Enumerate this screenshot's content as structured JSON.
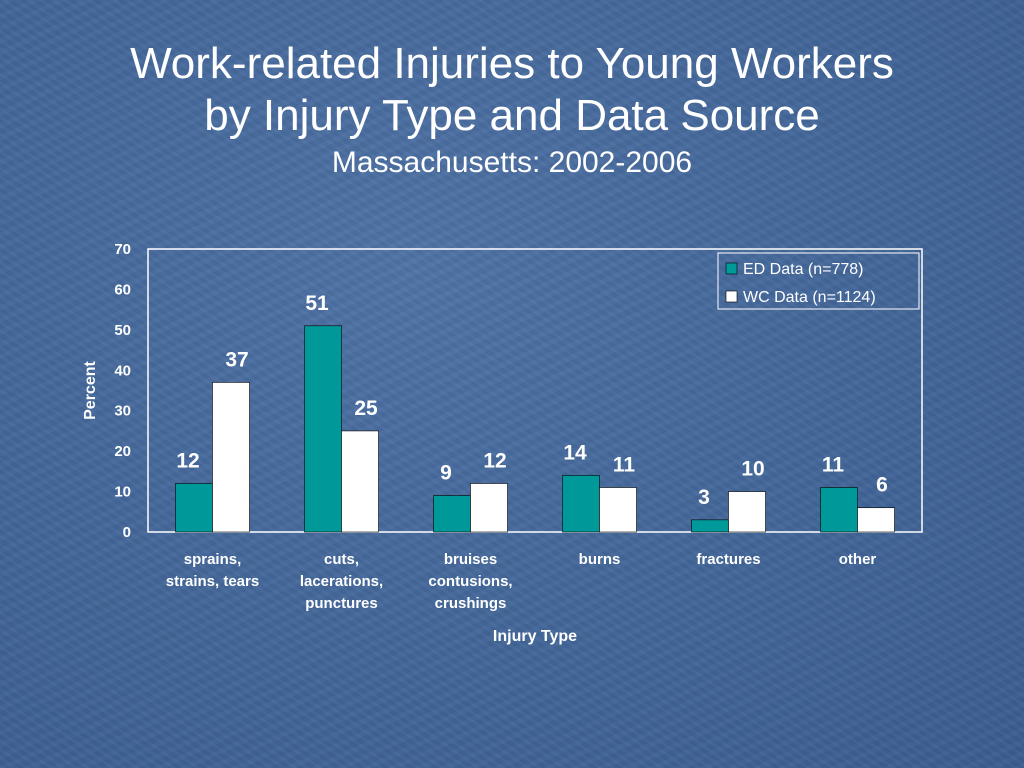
{
  "slide": {
    "title_line1": "Work-related Injuries to Young Workers",
    "title_line2": "by Injury Type and Data Source",
    "subtitle": "Massachusetts: 2002-2006"
  },
  "colors": {
    "ed_series": "#009999",
    "wc_series": "#ffffff",
    "text": "#ffffff"
  },
  "chart_data": {
    "type": "bar",
    "categories": [
      [
        "sprains,",
        "strains, tears"
      ],
      [
        "cuts,",
        "lacerations,",
        "punctures"
      ],
      [
        "bruises",
        "contusions,",
        "crushings"
      ],
      [
        "burns"
      ],
      [
        "fractures"
      ],
      [
        "other"
      ]
    ],
    "series": [
      {
        "name": "ED Data (n=778)",
        "values": [
          12,
          51,
          9,
          14,
          3,
          11
        ]
      },
      {
        "name": "WC Data (n=1124)",
        "values": [
          37,
          25,
          12,
          11,
          10,
          6
        ]
      }
    ],
    "xlabel": "Injury Type",
    "ylabel": "Percent",
    "ylim": [
      0,
      70
    ],
    "yticks": [
      0,
      10,
      20,
      30,
      40,
      50,
      60,
      70
    ],
    "grid": false,
    "legend": "top-right",
    "data_labels": true
  }
}
